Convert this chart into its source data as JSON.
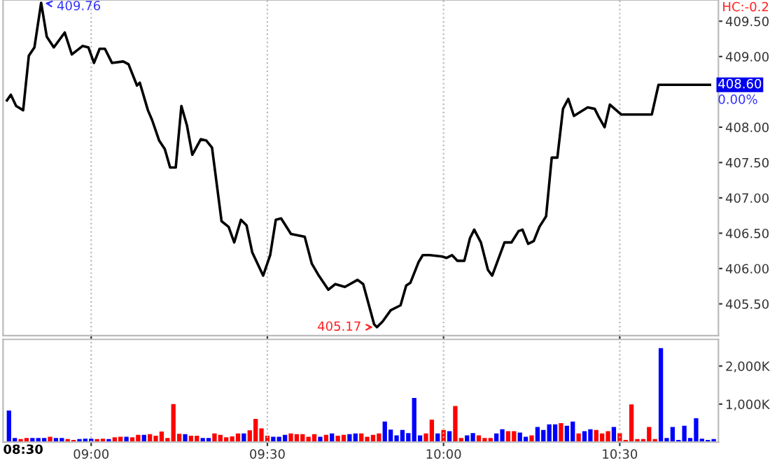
{
  "chart_data": [
    {
      "type": "line",
      "tick_labels": "y",
      "grid": "x",
      "marker": "none",
      "line_style": "solid",
      "xlim": [
        8.75,
        10.78
      ],
      "xticks": [
        9.0,
        9.5,
        10.0,
        10.5
      ],
      "ylim": [
        405.05,
        409.8
      ],
      "yticks": [
        {
          "value": 405.5,
          "label": "405.50"
        },
        {
          "value": 406.0,
          "label": "406.00"
        },
        {
          "value": 406.5,
          "label": "406.50"
        },
        {
          "value": 407.0,
          "label": "407.00"
        },
        {
          "value": 407.5,
          "label": "407.50"
        },
        {
          "value": 408.0,
          "label": "408.00"
        },
        {
          "value": 409.0,
          "label": "409.00"
        },
        {
          "value": 409.5,
          "label": "409.50"
        }
      ],
      "series": [
        {
          "color": "#000000",
          "x": [
            8.761,
            8.772,
            8.787,
            8.807,
            8.823,
            8.839,
            8.858,
            8.874,
            8.894,
            8.925,
            8.945,
            8.976,
            8.992,
            9.008,
            9.024,
            9.039,
            9.059,
            9.091,
            9.106,
            9.13,
            9.138,
            9.161,
            9.173,
            9.193,
            9.209,
            9.224,
            9.24,
            9.256,
            9.272,
            9.287,
            9.311,
            9.327,
            9.343,
            9.37,
            9.39,
            9.406,
            9.425,
            9.441,
            9.457,
            9.488,
            9.508,
            9.524,
            9.539,
            9.567,
            9.606,
            9.626,
            9.646,
            9.673,
            9.693,
            9.72,
            9.756,
            9.772,
            9.803,
            9.811,
            9.827,
            9.85,
            9.878,
            9.894,
            9.906,
            9.929,
            9.941,
            9.961,
            9.996,
            10.008,
            10.024,
            10.039,
            10.059,
            10.075,
            10.087,
            10.106,
            10.126,
            10.138,
            10.173,
            10.193,
            10.213,
            10.224,
            10.24,
            10.256,
            10.272,
            10.291,
            10.307,
            10.323,
            10.339,
            10.354,
            10.37,
            10.409,
            10.429,
            10.441,
            10.457,
            10.472,
            10.504,
            10.591,
            10.61,
            10.756
          ],
          "values": [
            408.38,
            408.46,
            408.3,
            408.24,
            409.01,
            409.13,
            409.76,
            409.28,
            409.13,
            409.34,
            409.03,
            409.15,
            409.13,
            408.91,
            409.11,
            409.11,
            408.91,
            408.93,
            408.89,
            408.59,
            408.63,
            408.24,
            408.1,
            407.81,
            407.69,
            407.43,
            407.43,
            408.3,
            408.02,
            407.61,
            407.83,
            407.81,
            407.71,
            406.67,
            406.59,
            406.37,
            406.69,
            406.61,
            406.23,
            405.9,
            406.19,
            406.69,
            406.71,
            406.49,
            406.45,
            406.07,
            405.9,
            405.7,
            405.78,
            405.74,
            405.84,
            405.78,
            405.21,
            405.17,
            405.25,
            405.41,
            405.48,
            405.76,
            405.8,
            406.09,
            406.19,
            406.19,
            406.17,
            406.15,
            406.19,
            406.11,
            406.11,
            406.43,
            406.55,
            406.37,
            405.98,
            405.9,
            406.37,
            406.37,
            406.53,
            406.55,
            406.35,
            406.39,
            406.59,
            406.74,
            407.57,
            407.57,
            408.26,
            408.4,
            408.16,
            408.28,
            408.26,
            408.14,
            408.0,
            408.32,
            408.18,
            408.18,
            408.6,
            408.6
          ]
        }
      ],
      "annotations": [
        {
          "text": "409.76",
          "x": 8.858,
          "y": 409.76
        },
        {
          "text": "405.17",
          "x": 9.811,
          "y": 405.17
        },
        {
          "text": "408.60",
          "x": 10.756,
          "y": 408.6
        },
        "0.00%",
        "HC:-0.2"
      ]
    },
    {
      "type": "bar",
      "grid": "x",
      "annotations": [
        "08:30"
      ],
      "xlim": [
        8.75,
        10.78
      ],
      "xticks": [
        {
          "value": 9.0,
          "label": "09:00"
        },
        {
          "value": 9.5,
          "label": "09:30"
        },
        {
          "value": 10.0,
          "label": "10:00"
        },
        {
          "value": 10.5,
          "label": "10:30"
        }
      ],
      "ylim": [
        0,
        2700
      ],
      "yticks": [
        {
          "value": 1000,
          "label": "1,000K"
        },
        {
          "value": 2000,
          "label": "2,000K"
        }
      ],
      "x": [
        8.7667,
        8.7833,
        8.8,
        8.8167,
        8.8333,
        8.85,
        8.8667,
        8.8833,
        8.9,
        8.9167,
        8.9333,
        8.95,
        8.9667,
        8.9833,
        9.0,
        9.0167,
        9.0333,
        9.05,
        9.0667,
        9.0833,
        9.1,
        9.1167,
        9.1333,
        9.15,
        9.1667,
        9.1833,
        9.2,
        9.2167,
        9.2333,
        9.25,
        9.2667,
        9.2833,
        9.3,
        9.3167,
        9.3333,
        9.35,
        9.3667,
        9.3833,
        9.4,
        9.4167,
        9.4333,
        9.45,
        9.4667,
        9.4833,
        9.5,
        9.5167,
        9.5333,
        9.55,
        9.5667,
        9.5833,
        9.6,
        9.6167,
        9.6333,
        9.65,
        9.6667,
        9.6833,
        9.7,
        9.7167,
        9.7333,
        9.75,
        9.7667,
        9.7833,
        9.8,
        9.8167,
        9.8333,
        9.85,
        9.8667,
        9.8833,
        9.9,
        9.9167,
        9.9333,
        9.95,
        9.9667,
        9.9833,
        10.0,
        10.0167,
        10.0333,
        10.05,
        10.0667,
        10.0833,
        10.1,
        10.1167,
        10.1333,
        10.15,
        10.1667,
        10.1833,
        10.2,
        10.2167,
        10.2333,
        10.25,
        10.2667,
        10.2833,
        10.3,
        10.3167,
        10.3333,
        10.35,
        10.3667,
        10.3833,
        10.4,
        10.4167,
        10.4333,
        10.45,
        10.4667,
        10.4833,
        10.5,
        10.5167,
        10.5333,
        10.55,
        10.5667,
        10.5833,
        10.6,
        10.6167,
        10.6333,
        10.65,
        10.6667,
        10.6833,
        10.7,
        10.7167,
        10.7333,
        10.75,
        10.7667
      ],
      "values": [
        830,
        110,
        80,
        110,
        110,
        110,
        110,
        140,
        110,
        110,
        80,
        60,
        80,
        90,
        90,
        80,
        90,
        80,
        130,
        140,
        140,
        130,
        190,
        190,
        210,
        170,
        280,
        110,
        1000,
        220,
        210,
        170,
        170,
        110,
        110,
        230,
        190,
        130,
        150,
        230,
        230,
        310,
        610,
        360,
        170,
        140,
        140,
        190,
        230,
        210,
        210,
        140,
        210,
        140,
        190,
        230,
        170,
        190,
        210,
        230,
        230,
        140,
        190,
        230,
        540,
        330,
        180,
        320,
        240,
        1160,
        180,
        230,
        590,
        230,
        320,
        290,
        950,
        110,
        180,
        240,
        180,
        110,
        110,
        230,
        340,
        290,
        290,
        250,
        140,
        180,
        400,
        320,
        470,
        470,
        500,
        430,
        540,
        230,
        290,
        340,
        320,
        230,
        290,
        400,
        240,
        60,
        990,
        80,
        80,
        400,
        80,
        2470,
        110,
        400,
        60,
        430,
        110,
        630,
        90,
        60,
        80
      ],
      "colors": [
        "#0000ff",
        "#0000ff",
        "#ff0000",
        "#ff0000",
        "#0000ff",
        "#0000ff",
        "#0000ff",
        "#ff0000",
        "#0000ff",
        "#0000ff",
        "#ff0000",
        "#ff0000",
        "#0000ff",
        "#0000ff",
        "#0000ff",
        "#ff0000",
        "#ff0000",
        "#0000ff",
        "#ff0000",
        "#ff0000",
        "#0000ff",
        "#ff0000",
        "#ff0000",
        "#0000ff",
        "#ff0000",
        "#ff0000",
        "#ff0000",
        "#ff0000",
        "#ff0000",
        "#ff0000",
        "#0000ff",
        "#ff0000",
        "#ff0000",
        "#0000ff",
        "#0000ff",
        "#ff0000",
        "#ff0000",
        "#ff0000",
        "#ff0000",
        "#ff0000",
        "#0000ff",
        "#ff0000",
        "#ff0000",
        "#ff0000",
        "#ff0000",
        "#0000ff",
        "#0000ff",
        "#0000ff",
        "#ff0000",
        "#ff0000",
        "#ff0000",
        "#ff0000",
        "#ff0000",
        "#0000ff",
        "#ff0000",
        "#0000ff",
        "#ff0000",
        "#ff0000",
        "#0000ff",
        "#0000ff",
        "#ff0000",
        "#ff0000",
        "#ff0000",
        "#ff0000",
        "#0000ff",
        "#0000ff",
        "#0000ff",
        "#0000ff",
        "#0000ff",
        "#0000ff",
        "#0000ff",
        "#ff0000",
        "#ff0000",
        "#0000ff",
        "#ff0000",
        "#0000ff",
        "#ff0000",
        "#ff0000",
        "#0000ff",
        "#0000ff",
        "#ff0000",
        "#ff0000",
        "#ff0000",
        "#0000ff",
        "#0000ff",
        "#ff0000",
        "#ff0000",
        "#0000ff",
        "#0000ff",
        "#ff0000",
        "#0000ff",
        "#0000ff",
        "#0000ff",
        "#0000ff",
        "#ff0000",
        "#0000ff",
        "#0000ff",
        "#ff0000",
        "#0000ff",
        "#0000ff",
        "#ff0000",
        "#ff0000",
        "#ff0000",
        "#0000ff",
        "#ff0000",
        "#ff0000",
        "#ff0000",
        "#ff0000",
        "#ff0000",
        "#ff0000",
        "#ff0000",
        "#0000ff",
        "#0000ff",
        "#0000ff",
        "#0000ff",
        "#0000ff",
        "#0000ff",
        "#0000ff",
        "#0000ff",
        "#0000ff",
        "#0000ff"
      ]
    }
  ]
}
